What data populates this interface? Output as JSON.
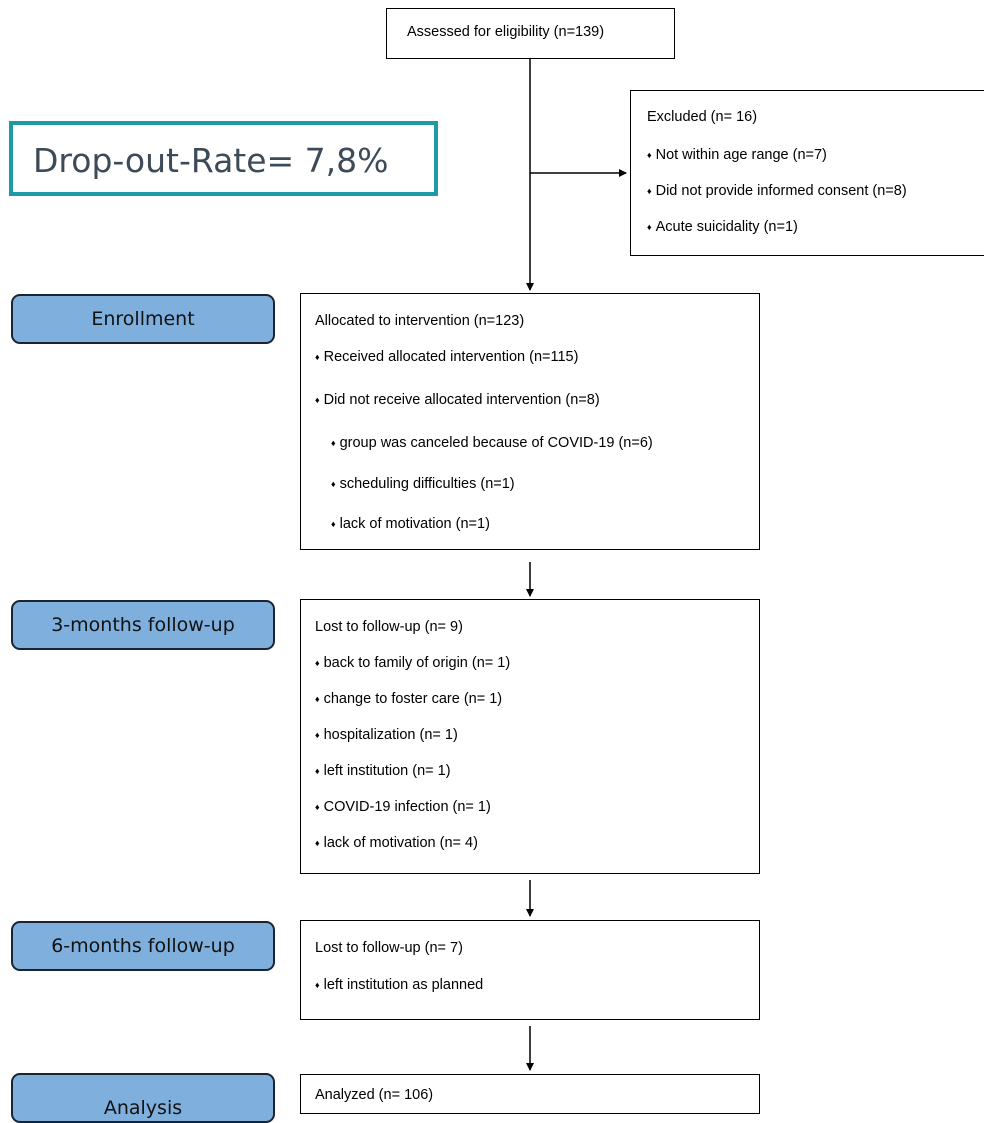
{
  "drop_out": {
    "label": "Drop-out-Rate= 7,8%"
  },
  "assessed": {
    "text": "Assessed for eligibility (n=139)"
  },
  "excluded": {
    "title": "Excluded (n= 16)",
    "items": [
      "Not within age range (n=7)",
      "Did not provide informed consent (n=8)",
      "Acute suicidality (n=1)"
    ]
  },
  "stages": {
    "enrollment": "Enrollment",
    "followup3": "3-months follow-up",
    "followup6": "6-months follow-up",
    "analysis": "Analysis"
  },
  "allocated": {
    "title": "Allocated to intervention (n=123)",
    "items": [
      "Received allocated intervention (n=115)",
      "Did not receive allocated intervention (n=8)"
    ],
    "subitems": [
      "group was canceled because of COVID-19 (n=6)",
      "scheduling difficulties (n=1)",
      "lack of motivation (n=1)"
    ]
  },
  "lost3": {
    "title": "Lost to follow-up (n= 9)",
    "items": [
      "back to family of origin (n= 1)",
      "change to foster care (n= 1)",
      "hospitalization (n= 1)",
      "left institution (n= 1)",
      "COVID-19 infection (n= 1)",
      "lack of motivation (n= 4)"
    ]
  },
  "lost6": {
    "title": "Lost to follow-up (n= 7)",
    "items": [
      "left institution as planned"
    ]
  },
  "analyzed": {
    "title": "Analyzed (n= 106)"
  }
}
